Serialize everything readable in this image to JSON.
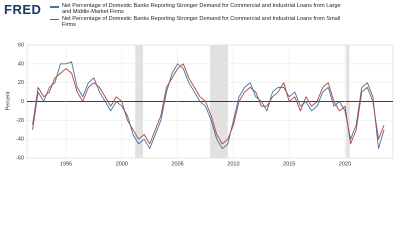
{
  "chart_data": {
    "type": "line",
    "logo": "FRED",
    "y_label": "Percent",
    "x": [
      1992,
      1992.5,
      1993,
      1993.5,
      1994,
      1994.5,
      1995,
      1995.5,
      1996,
      1996.5,
      1997,
      1997.5,
      1998,
      1998.5,
      1999,
      1999.5,
      2000,
      2000.5,
      2001,
      2001.5,
      2002,
      2002.5,
      2003,
      2003.5,
      2004,
      2004.5,
      2005,
      2005.5,
      2006,
      2006.5,
      2007,
      2007.5,
      2008,
      2008.5,
      2009,
      2009.5,
      2010,
      2010.5,
      2011,
      2011.5,
      2012,
      2012.5,
      2013,
      2013.5,
      2014,
      2014.5,
      2015,
      2015.5,
      2016,
      2016.5,
      2017,
      2017.5,
      2018,
      2018.5,
      2019,
      2019.5,
      2020,
      2020.5,
      2021,
      2021.5,
      2022,
      2022.5,
      2023,
      2023.5
    ],
    "series": [
      {
        "name": "Net Percentage of Domestic Banks Reporting Stronger Demand for Commercial and Industrial Loans from Large and Middle-Market Firms",
        "color": "#4572a7",
        "values": [
          -30,
          10,
          0,
          15,
          20,
          40,
          40,
          42,
          15,
          5,
          20,
          25,
          10,
          0,
          -10,
          0,
          -5,
          -15,
          -35,
          -45,
          -40,
          -50,
          -35,
          -20,
          10,
          30,
          40,
          35,
          20,
          10,
          0,
          -5,
          -20,
          -40,
          -50,
          -45,
          -20,
          5,
          15,
          20,
          5,
          0,
          -10,
          10,
          15,
          15,
          5,
          10,
          -5,
          0,
          -10,
          -5,
          10,
          15,
          -5,
          0,
          -10,
          -40,
          -25,
          15,
          20,
          5,
          -50,
          -30
        ]
      },
      {
        "name": "Net Percentage of Domestic Banks Reporting Stronger Demand for Commercial and Industrial Loans from Small Firms",
        "color": "#aa4643",
        "values": [
          -25,
          15,
          5,
          10,
          25,
          30,
          35,
          30,
          10,
          0,
          15,
          20,
          15,
          5,
          -5,
          5,
          0,
          -20,
          -30,
          -40,
          -35,
          -45,
          -30,
          -15,
          15,
          25,
          35,
          40,
          25,
          15,
          5,
          0,
          -15,
          -35,
          -45,
          -40,
          -25,
          0,
          10,
          15,
          10,
          -5,
          -5,
          5,
          10,
          20,
          0,
          5,
          -10,
          5,
          -5,
          0,
          15,
          20,
          0,
          -10,
          -5,
          -45,
          -30,
          10,
          15,
          0,
          -40,
          -25
        ]
      }
    ],
    "recessions": [
      [
        2001.2,
        2001.9
      ],
      [
        2007.9,
        2009.5
      ],
      [
        2020.1,
        2020.4
      ]
    ],
    "xlim": [
      1991.5,
      2024.3
    ],
    "xticks": [
      1995,
      2000,
      2005,
      2010,
      2015,
      2020
    ],
    "ylim": [
      -60,
      60
    ],
    "yticks": [
      -60,
      -40,
      -20,
      0,
      20,
      40,
      60
    ],
    "grid": true
  }
}
